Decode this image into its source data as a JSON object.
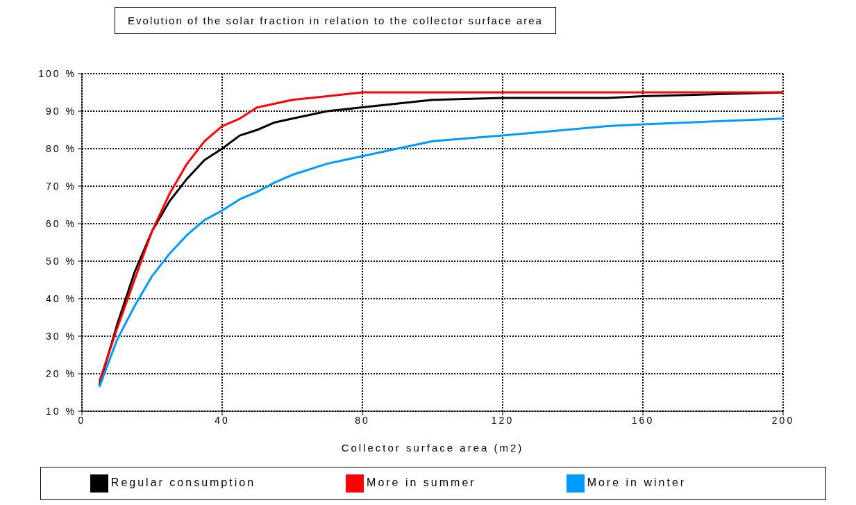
{
  "chart_data": {
    "type": "line",
    "title": "Evolution of the solar fraction in relation to the collector surface area",
    "xlabel": "Collector surface area (m2)",
    "x": [
      5,
      10,
      15,
      20,
      25,
      30,
      35,
      40,
      45,
      50,
      55,
      60,
      70,
      80,
      100,
      120,
      150,
      160,
      200
    ],
    "series": [
      {
        "name": "Regular consumption",
        "color": "#000000",
        "values": [
          17,
          33,
          47,
          58,
          66,
          72,
          77,
          80,
          83.5,
          85,
          87,
          88,
          90,
          91,
          93,
          93.5,
          93.5,
          94,
          95
        ]
      },
      {
        "name": "More in summer",
        "color": "#ff0000",
        "values": [
          18,
          32,
          45,
          58,
          68,
          76,
          82,
          86,
          88,
          91,
          92,
          93,
          94,
          95,
          95,
          95,
          95,
          95,
          95
        ]
      },
      {
        "name": "More in winter",
        "color": "#0099ff",
        "values": [
          16.5,
          29,
          38,
          46,
          52,
          57,
          61,
          63.5,
          66.5,
          68.5,
          71,
          73,
          76,
          78,
          82,
          83.5,
          86,
          86.5,
          88
        ]
      }
    ],
    "xlim": [
      0,
      200
    ],
    "xticks": [
      0,
      40,
      80,
      120,
      160,
      200
    ],
    "ylim": [
      10,
      100
    ],
    "yticks": [
      {
        "value": 10,
        "label": "10 %"
      },
      {
        "value": 20,
        "label": "20 %"
      },
      {
        "value": 30,
        "label": "30 %"
      },
      {
        "value": 40,
        "label": "40 %"
      },
      {
        "value": 50,
        "label": "50 %"
      },
      {
        "value": 60,
        "label": "60 %"
      },
      {
        "value": 70,
        "label": "70 %"
      },
      {
        "value": 80,
        "label": "80 %"
      },
      {
        "value": 90,
        "label": "90 %"
      },
      {
        "value": 100,
        "label": "100 %"
      }
    ],
    "grid": true,
    "legend": "bottom",
    "marker": "none",
    "line_style": "solid"
  }
}
